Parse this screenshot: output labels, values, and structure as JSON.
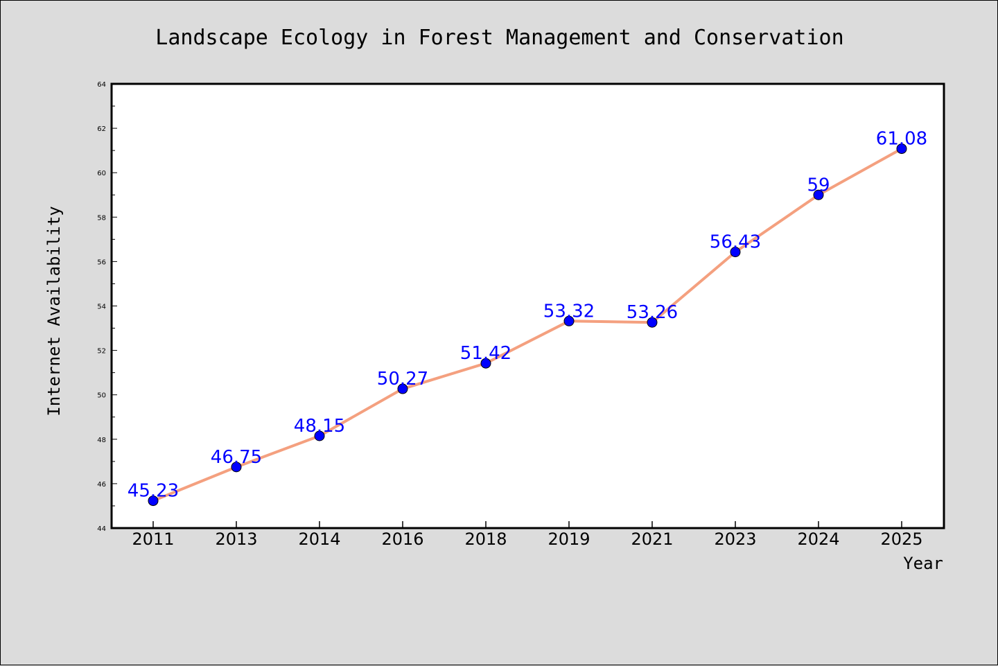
{
  "chart_data": {
    "type": "line",
    "title": "Landscape Ecology in Forest Management and Conservation",
    "xlabel": "Year",
    "ylabel": "Internet Availability",
    "categories": [
      "2011",
      "2013",
      "2014",
      "2016",
      "2018",
      "2019",
      "2021",
      "2023",
      "2024",
      "2025"
    ],
    "series": [
      {
        "values": [
          45.23,
          46.75,
          48.15,
          50.27,
          51.42,
          53.32,
          53.26,
          56.43,
          59,
          61.08
        ],
        "labels": [
          "45.23",
          "46.75",
          "48.15",
          "50.27",
          "51.42",
          "53.32",
          "53.26",
          "56.43",
          "59",
          "61.08"
        ]
      }
    ],
    "ylim": [
      44,
      64
    ],
    "yticks": [
      "44",
      "46",
      "48",
      "50",
      "52",
      "54",
      "56",
      "58",
      "60",
      "62",
      "64"
    ],
    "grid": false,
    "legend": "none",
    "colors": {
      "line": "#f4a07f",
      "marker": "#0000ff",
      "label": "#0000ff",
      "plot_background": "#ffffff",
      "page_background": "#dcdcdc"
    }
  }
}
